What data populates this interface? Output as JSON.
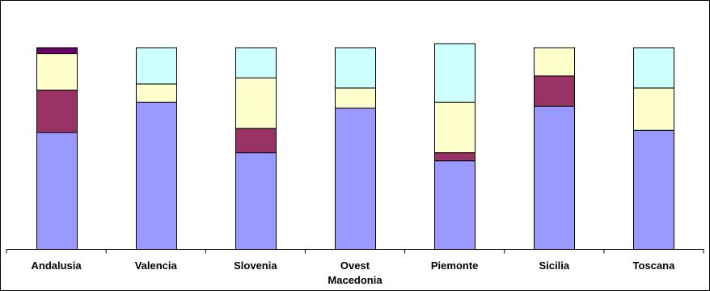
{
  "chart_data": {
    "type": "bar",
    "stacked": true,
    "categories": [
      [
        "Andalusia"
      ],
      [
        "Valencia"
      ],
      [
        "Slovenia"
      ],
      [
        "Ovest",
        "Macedonia"
      ],
      [
        "Piemonte"
      ],
      [
        "Sicilia"
      ],
      [
        "Toscana"
      ]
    ],
    "series": [
      {
        "color": "#9999ff",
        "values": [
          58,
          73,
          48,
          70,
          44,
          71,
          59
        ]
      },
      {
        "color": "#993366",
        "values": [
          21,
          0,
          12,
          0,
          4,
          15,
          0
        ]
      },
      {
        "color": "#ffffcc",
        "values": [
          18,
          9,
          25,
          10,
          25,
          14,
          21
        ]
      },
      {
        "color": "#ccffff",
        "values": [
          0,
          18,
          15,
          20,
          29,
          0,
          20
        ]
      },
      {
        "color": "#660066",
        "values": [
          3,
          0,
          0,
          0,
          0,
          0,
          0
        ]
      }
    ],
    "ylim": [
      0,
      100
    ],
    "grid": false,
    "legend": "none",
    "title": "",
    "xlabel": "",
    "ylabel": ""
  }
}
